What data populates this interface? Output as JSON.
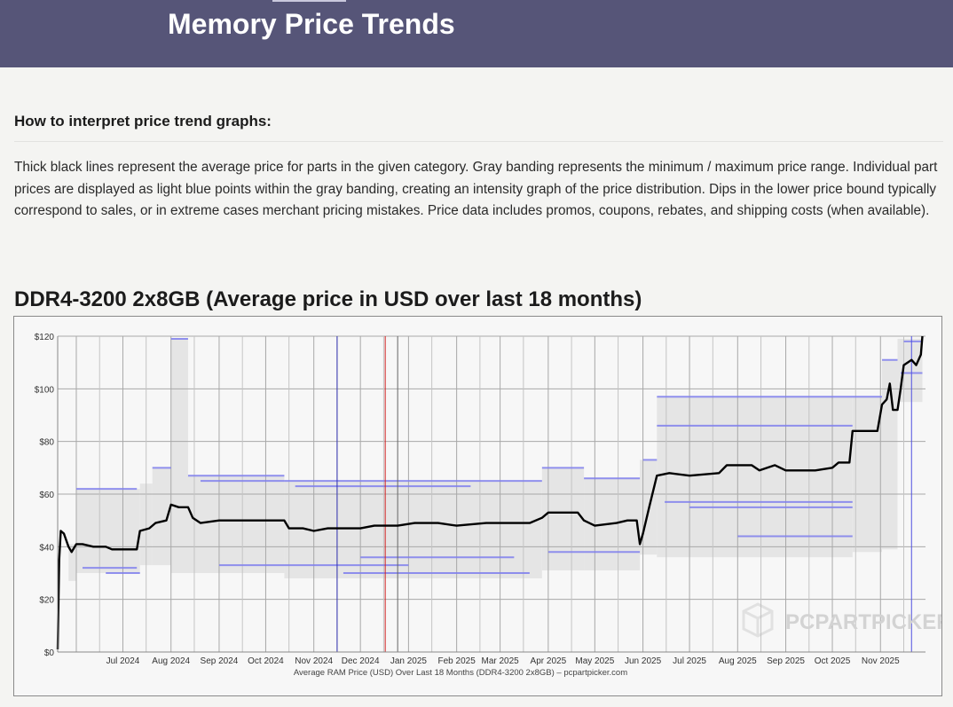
{
  "header": {
    "title": "Memory Price Trends"
  },
  "howto": {
    "heading": "How to interpret price trend graphs:",
    "body": "Thick black lines represent the average price for parts in the given category. Gray banding represents the minimum / maximum price range. Individual part prices are displayed as light blue points within the gray banding, creating an intensity graph of the price distribution. Dips in the lower price bound typically correspond to sales, or in extreme cases merchant pricing mistakes. Price data includes promos, coupons, rebates, and shipping costs (when available)."
  },
  "chart_section": {
    "title": "DDR4-3200 2x8GB (Average price in USD over last 18 months)"
  },
  "watermark": "PCPARTPICKER",
  "colors": {
    "average_line": "#000000",
    "band": "#e5e5e5",
    "points": "#8080ee",
    "marker_blue": "#3030b0",
    "marker_red": "#d02020",
    "marker_gray": "#666666"
  },
  "chart_data": {
    "type": "line",
    "title": "",
    "xlabel": "Average RAM Price (USD) Over Last 18 Months (DDR4-3200 2x8GB) – pcpartpicker.com",
    "ylabel": "",
    "x_range": [
      "2024-05-20",
      "2025-11-30"
    ],
    "ylim": [
      0,
      120
    ],
    "y_ticks": [
      0,
      20,
      40,
      60,
      80,
      100,
      120
    ],
    "y_tick_labels": [
      "$0",
      "$20",
      "$40",
      "$60",
      "$80",
      "$100",
      "$120"
    ],
    "x_ticks": [
      {
        "label": "Jul 2024",
        "date": "2024-07-01"
      },
      {
        "label": "Aug 2024",
        "date": "2024-08-01"
      },
      {
        "label": "Sep 2024",
        "date": "2024-09-01"
      },
      {
        "label": "Oct 2024",
        "date": "2024-10-01"
      },
      {
        "label": "Nov 2024",
        "date": "2024-11-01"
      },
      {
        "label": "Dec 2024",
        "date": "2024-12-01"
      },
      {
        "label": "Jan 2025",
        "date": "2025-01-01"
      },
      {
        "label": "Feb 2025",
        "date": "2025-02-01"
      },
      {
        "label": "Mar 2025",
        "date": "2025-03-01"
      },
      {
        "label": "Apr 2025",
        "date": "2025-04-01"
      },
      {
        "label": "May 2025",
        "date": "2025-05-01"
      },
      {
        "label": "Jun 2025",
        "date": "2025-06-01"
      },
      {
        "label": "Jul 2025",
        "date": "2025-07-01"
      },
      {
        "label": "Aug 2025",
        "date": "2025-08-01"
      },
      {
        "label": "Sep 2025",
        "date": "2025-09-01"
      },
      {
        "label": "Oct 2025",
        "date": "2025-10-01"
      },
      {
        "label": "Nov 2025",
        "date": "2025-11-01"
      }
    ],
    "grid": true,
    "vertical_markers": [
      {
        "date": "2024-11-16",
        "color": "#3030b0"
      },
      {
        "date": "2024-12-17",
        "color": "#d02020"
      },
      {
        "date": "2024-12-25",
        "color": "#666666"
      },
      {
        "date": "2025-11-21",
        "color": "#5050e0"
      }
    ],
    "series": [
      {
        "points": [
          [
            "2024-05-20",
            1
          ],
          [
            "2024-05-21",
            35
          ],
          [
            "2024-05-22",
            46
          ],
          [
            "2024-05-24",
            45
          ],
          [
            "2024-05-27",
            40
          ],
          [
            "2024-05-29",
            38
          ],
          [
            "2024-06-01",
            41
          ],
          [
            "2024-06-05",
            41
          ],
          [
            "2024-06-12",
            40
          ],
          [
            "2024-06-20",
            40
          ],
          [
            "2024-06-24",
            39
          ],
          [
            "2024-07-01",
            39
          ],
          [
            "2024-07-10",
            39
          ],
          [
            "2024-07-12",
            46
          ],
          [
            "2024-07-18",
            47
          ],
          [
            "2024-07-22",
            49
          ],
          [
            "2024-07-29",
            50
          ],
          [
            "2024-08-01",
            56
          ],
          [
            "2024-08-06",
            55
          ],
          [
            "2024-08-12",
            55
          ],
          [
            "2024-08-15",
            51
          ],
          [
            "2024-08-20",
            49
          ],
          [
            "2024-09-01",
            50
          ],
          [
            "2024-09-15",
            50
          ],
          [
            "2024-10-01",
            50
          ],
          [
            "2024-10-13",
            50
          ],
          [
            "2024-10-16",
            47
          ],
          [
            "2024-10-25",
            47
          ],
          [
            "2024-11-01",
            46
          ],
          [
            "2024-11-10",
            47
          ],
          [
            "2024-11-20",
            47
          ],
          [
            "2024-12-01",
            47
          ],
          [
            "2024-12-10",
            48
          ],
          [
            "2024-12-25",
            48
          ],
          [
            "2025-01-05",
            49
          ],
          [
            "2025-01-20",
            49
          ],
          [
            "2025-02-01",
            48
          ],
          [
            "2025-02-20",
            49
          ],
          [
            "2025-03-01",
            49
          ],
          [
            "2025-03-20",
            49
          ],
          [
            "2025-03-28",
            51
          ],
          [
            "2025-04-01",
            53
          ],
          [
            "2025-04-20",
            53
          ],
          [
            "2025-04-24",
            50
          ],
          [
            "2025-05-01",
            48
          ],
          [
            "2025-05-15",
            49
          ],
          [
            "2025-05-22",
            50
          ],
          [
            "2025-05-28",
            50
          ],
          [
            "2025-05-30",
            41
          ],
          [
            "2025-06-01",
            45
          ],
          [
            "2025-06-05",
            55
          ],
          [
            "2025-06-10",
            67
          ],
          [
            "2025-06-18",
            68
          ],
          [
            "2025-07-01",
            67
          ],
          [
            "2025-07-20",
            68
          ],
          [
            "2025-07-25",
            71
          ],
          [
            "2025-08-10",
            71
          ],
          [
            "2025-08-15",
            69
          ],
          [
            "2025-08-25",
            71
          ],
          [
            "2025-09-01",
            69
          ],
          [
            "2025-09-20",
            69
          ],
          [
            "2025-10-01",
            70
          ],
          [
            "2025-10-05",
            72
          ],
          [
            "2025-10-12",
            72
          ],
          [
            "2025-10-14",
            84
          ],
          [
            "2025-10-30",
            84
          ],
          [
            "2025-11-02",
            94
          ],
          [
            "2025-11-05",
            96
          ],
          [
            "2025-11-07",
            102
          ],
          [
            "2025-11-09",
            92
          ],
          [
            "2025-11-12",
            92
          ],
          [
            "2025-11-14",
            100
          ],
          [
            "2025-11-16",
            109
          ],
          [
            "2025-11-21",
            111
          ],
          [
            "2025-11-24",
            109
          ],
          [
            "2025-11-27",
            113
          ],
          [
            "2025-11-28",
            120
          ]
        ]
      }
    ],
    "price_band": [
      {
        "from": "2024-05-27",
        "to": "2024-06-01",
        "min": 27,
        "max": 41
      },
      {
        "from": "2024-06-01",
        "to": "2024-07-12",
        "min": 30,
        "max": 62
      },
      {
        "from": "2024-07-12",
        "to": "2024-07-20",
        "min": 33,
        "max": 64
      },
      {
        "from": "2024-07-20",
        "to": "2024-08-01",
        "min": 33,
        "max": 70
      },
      {
        "from": "2024-08-01",
        "to": "2024-08-12",
        "min": 30,
        "max": 119
      },
      {
        "from": "2024-08-12",
        "to": "2024-10-13",
        "min": 30,
        "max": 67
      },
      {
        "from": "2024-10-13",
        "to": "2025-03-28",
        "min": 28,
        "max": 65
      },
      {
        "from": "2025-03-28",
        "to": "2025-04-24",
        "min": 31,
        "max": 70
      },
      {
        "from": "2025-04-24",
        "to": "2025-05-30",
        "min": 31,
        "max": 66
      },
      {
        "from": "2025-05-30",
        "to": "2025-06-10",
        "min": 37,
        "max": 73
      },
      {
        "from": "2025-06-10",
        "to": "2025-10-14",
        "min": 36,
        "max": 97
      },
      {
        "from": "2025-10-14",
        "to": "2025-11-02",
        "min": 38,
        "max": 97
      },
      {
        "from": "2025-11-02",
        "to": "2025-11-12",
        "min": 39,
        "max": 111
      },
      {
        "from": "2025-11-12",
        "to": "2025-11-28",
        "min": 95,
        "max": 119
      }
    ],
    "part_price_levels": [
      {
        "from": "2024-06-01",
        "to": "2024-07-10",
        "price": 62
      },
      {
        "from": "2024-06-05",
        "to": "2024-07-10",
        "price": 32
      },
      {
        "from": "2024-06-20",
        "to": "2024-07-12",
        "price": 30
      },
      {
        "from": "2024-07-20",
        "to": "2024-08-01",
        "price": 70
      },
      {
        "from": "2024-08-01",
        "to": "2024-08-12",
        "price": 119
      },
      {
        "from": "2024-08-12",
        "to": "2024-10-13",
        "price": 67
      },
      {
        "from": "2024-08-20",
        "to": "2024-10-13",
        "price": 65
      },
      {
        "from": "2024-09-01",
        "to": "2025-01-01",
        "price": 33
      },
      {
        "from": "2024-10-13",
        "to": "2025-03-28",
        "price": 65
      },
      {
        "from": "2024-10-20",
        "to": "2025-02-10",
        "price": 63
      },
      {
        "from": "2024-11-20",
        "to": "2025-03-20",
        "price": 30
      },
      {
        "from": "2024-12-01",
        "to": "2025-03-10",
        "price": 36
      },
      {
        "from": "2025-03-28",
        "to": "2025-04-24",
        "price": 70
      },
      {
        "from": "2025-04-24",
        "to": "2025-05-30",
        "price": 66
      },
      {
        "from": "2025-04-01",
        "to": "2025-05-30",
        "price": 38
      },
      {
        "from": "2025-06-01",
        "to": "2025-06-10",
        "price": 73
      },
      {
        "from": "2025-06-10",
        "to": "2025-11-02",
        "price": 97
      },
      {
        "from": "2025-06-10",
        "to": "2025-10-14",
        "price": 86
      },
      {
        "from": "2025-06-15",
        "to": "2025-10-14",
        "price": 57
      },
      {
        "from": "2025-07-01",
        "to": "2025-10-14",
        "price": 55
      },
      {
        "from": "2025-08-01",
        "to": "2025-10-14",
        "price": 44
      },
      {
        "from": "2025-11-02",
        "to": "2025-11-12",
        "price": 111
      },
      {
        "from": "2025-11-16",
        "to": "2025-11-28",
        "price": 118
      },
      {
        "from": "2025-11-14",
        "to": "2025-11-28",
        "price": 106
      }
    ]
  }
}
